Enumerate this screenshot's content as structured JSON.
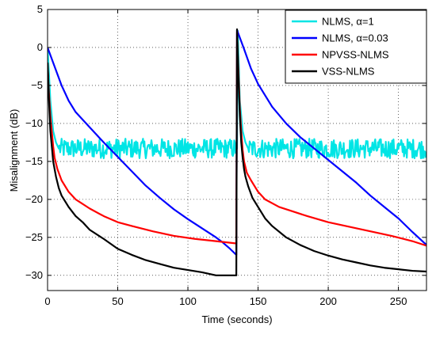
{
  "chart_data": {
    "type": "line",
    "title": "",
    "xlabel": "Time (seconds)",
    "ylabel": "Misalignment (dB)",
    "xlim": [
      0,
      270
    ],
    "ylim": [
      -32,
      5
    ],
    "xticks": [
      0,
      50,
      100,
      150,
      200,
      250
    ],
    "yticks": [
      5,
      0,
      -5,
      -10,
      -15,
      -20,
      -25,
      -30
    ],
    "grid": true,
    "legend_position": "top-right",
    "series": [
      {
        "name": "NLMS, α=1",
        "color": "#00e5e5",
        "noise_amplitude_db": 1.3,
        "x": [
          0,
          2,
          4,
          6,
          8,
          135,
          135.5,
          137,
          139,
          141,
          143,
          270
        ],
        "y": [
          0,
          -7,
          -11,
          -12.5,
          -13.3,
          -13.3,
          2.2,
          -7,
          -11,
          -12.5,
          -13.3,
          -13.3
        ]
      },
      {
        "name": "NLMS, α=0.03",
        "color": "#0000ff",
        "x": [
          0,
          5,
          10,
          15,
          20,
          30,
          40,
          50,
          60,
          70,
          80,
          90,
          100,
          110,
          120,
          125,
          130,
          134.5,
          135,
          136,
          140,
          145,
          150,
          160,
          170,
          180,
          190,
          200,
          210,
          220,
          230,
          240,
          250,
          260,
          270
        ],
        "y": [
          0,
          -2.5,
          -5,
          -7,
          -8.5,
          -10.5,
          -12.5,
          -14.4,
          -16.3,
          -18.2,
          -19.8,
          -21.3,
          -22.6,
          -23.8,
          -25.0,
          -25.7,
          -26.5,
          -27.3,
          2.3,
          1.8,
          -0.2,
          -2.8,
          -4.8,
          -7.8,
          -10.0,
          -11.8,
          -13.3,
          -14.8,
          -16.3,
          -17.8,
          -19.5,
          -21.0,
          -22.5,
          -24.3,
          -26.0
        ]
      },
      {
        "name": "NPVSS-NLMS",
        "color": "#ff0000",
        "x": [
          0,
          1,
          2,
          3,
          4,
          5,
          7,
          10,
          15,
          20,
          30,
          40,
          50,
          60,
          75,
          90,
          105,
          120,
          134.5,
          135,
          136,
          137,
          138,
          139,
          140,
          142,
          145,
          150,
          155,
          165,
          175,
          185,
          200,
          215,
          230,
          245,
          260,
          270
        ],
        "y": [
          -2,
          -6,
          -9,
          -11,
          -13,
          -14.5,
          -16,
          -17.5,
          -19,
          -20,
          -21.2,
          -22.2,
          -23,
          -23.5,
          -24.2,
          -24.8,
          -25.2,
          -25.5,
          -25.8,
          2.0,
          -3,
          -8,
          -11,
          -13.5,
          -15,
          -16.5,
          -17.5,
          -19,
          -20,
          -21,
          -21.6,
          -22.2,
          -23,
          -23.6,
          -24.2,
          -24.8,
          -25.5,
          -26.1
        ]
      },
      {
        "name": "VSS-NLMS",
        "color": "#000000",
        "x": [
          0,
          1,
          2,
          3,
          4,
          5,
          6,
          8,
          10,
          15,
          20,
          25,
          30,
          40,
          50,
          60,
          70,
          80,
          90,
          100,
          110,
          120,
          134.5,
          135,
          136,
          137,
          138,
          139,
          140,
          141,
          143,
          146,
          150,
          155,
          160,
          170,
          180,
          190,
          200,
          210,
          220,
          230,
          240,
          250,
          260,
          270
        ],
        "y": [
          -2,
          -7,
          -11,
          -13,
          -15,
          -16,
          -17,
          -18.5,
          -19.5,
          -21,
          -22.2,
          -23,
          -24,
          -25.2,
          -26.5,
          -27.3,
          -28,
          -28.5,
          -29,
          -29.3,
          -29.6,
          -30,
          -30,
          2.4,
          -4,
          -9,
          -12.5,
          -14.5,
          -16,
          -17,
          -18.3,
          -19.8,
          -21,
          -22.5,
          -23.5,
          -25,
          -26,
          -26.8,
          -27.4,
          -27.9,
          -28.3,
          -28.7,
          -29,
          -29.2,
          -29.4,
          -29.5
        ]
      }
    ]
  }
}
